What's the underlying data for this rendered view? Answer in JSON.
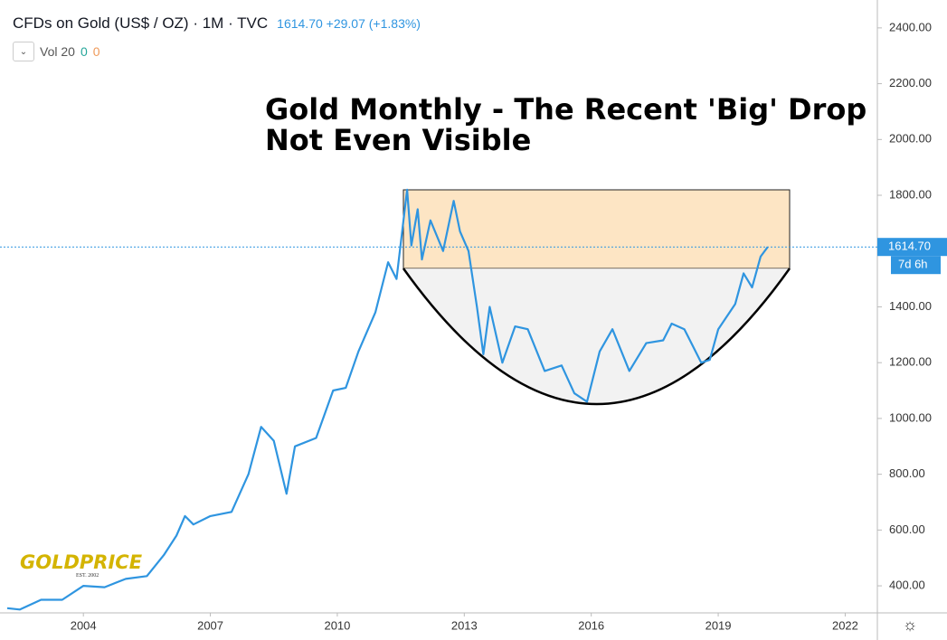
{
  "chart_data": {
    "type": "line",
    "title": "CFDs on Gold (US$ / OZ)",
    "interval": "1M",
    "source": "TVC",
    "last_price": "1614.70",
    "change": "+29.07",
    "change_pct": "(+1.83%)",
    "volume_label": "Vol 20",
    "volume_values": [
      "0",
      "0"
    ],
    "annotation": "Gold Monthly - The Recent 'Big' Drop Not Even Visible",
    "countdown": "7d 6h",
    "logo": "GOLDPRICE",
    "logo_sub": "EST. 2002",
    "color": "#2f95e0",
    "x": [
      2002.2,
      2002.5,
      2003.0,
      2003.5,
      2004.0,
      2004.5,
      2005.0,
      2005.5,
      2005.9,
      2006.2,
      2006.4,
      2006.6,
      2007.0,
      2007.5,
      2007.9,
      2008.2,
      2008.5,
      2008.8,
      2009.0,
      2009.5,
      2009.9,
      2010.2,
      2010.5,
      2010.9,
      2011.2,
      2011.4,
      2011.65,
      2011.75,
      2011.9,
      2012.0,
      2012.2,
      2012.5,
      2012.75,
      2012.9,
      2013.1,
      2013.3,
      2013.45,
      2013.6,
      2013.9,
      2014.2,
      2014.5,
      2014.9,
      2015.3,
      2015.6,
      2015.9,
      2016.2,
      2016.5,
      2016.9,
      2017.3,
      2017.7,
      2017.9,
      2018.2,
      2018.6,
      2018.8,
      2019.0,
      2019.4,
      2019.6,
      2019.8,
      2020.0,
      2020.17
    ],
    "values": [
      320,
      315,
      350,
      350,
      400,
      395,
      425,
      435,
      510,
      580,
      650,
      620,
      650,
      665,
      800,
      970,
      920,
      730,
      900,
      930,
      1100,
      1110,
      1240,
      1380,
      1560,
      1500,
      1820,
      1620,
      1750,
      1570,
      1710,
      1600,
      1780,
      1670,
      1600,
      1400,
      1230,
      1400,
      1200,
      1330,
      1320,
      1170,
      1190,
      1090,
      1060,
      1240,
      1320,
      1170,
      1270,
      1280,
      1340,
      1320,
      1200,
      1210,
      1320,
      1410,
      1520,
      1470,
      1580,
      1614.7
    ],
    "xlim": [
      2002.03,
      2022.76
    ],
    "xticks": [
      2004,
      2007,
      2010,
      2013,
      2016,
      2019,
      2022
    ],
    "ylim": [
      303,
      2500
    ],
    "yticks": [
      {
        "value": 400,
        "label": "400.00"
      },
      {
        "value": 600,
        "label": "600.00"
      },
      {
        "value": 800,
        "label": "800.00"
      },
      {
        "value": 1000,
        "label": "1000.00"
      },
      {
        "value": 1200,
        "label": "1200.00"
      },
      {
        "value": 1400,
        "label": "1400.00"
      },
      {
        "value": 1600,
        "label": "1600.00"
      },
      {
        "value": 1800,
        "label": "1800.00"
      },
      {
        "value": 2000,
        "label": "2000.00"
      },
      {
        "value": 2200,
        "label": "2200.00"
      },
      {
        "value": 2400,
        "label": "2400.00"
      }
    ]
  }
}
